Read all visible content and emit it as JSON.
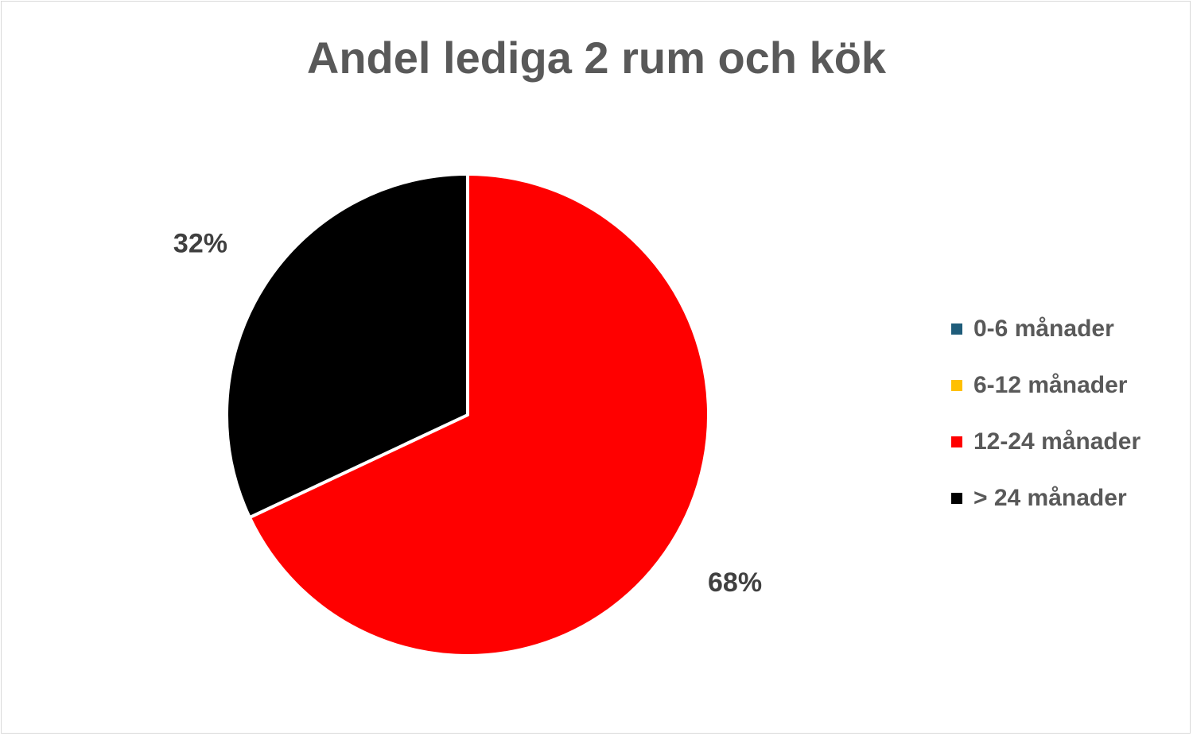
{
  "chart_data": {
    "type": "pie",
    "title": "Andel lediga 2 rum och kök",
    "categories": [
      "0-6 månader",
      "6-12 månader",
      "12-24 månader",
      "> 24 månader"
    ],
    "values": [
      0,
      0,
      68,
      32
    ],
    "unit": "%",
    "data_labels": [
      "",
      "",
      "68%",
      "32%"
    ],
    "colors": [
      "#1f5c7a",
      "#ffc000",
      "#ff0000",
      "#000000"
    ],
    "legend_position": "right",
    "slice_border_color": "#ffffff"
  }
}
